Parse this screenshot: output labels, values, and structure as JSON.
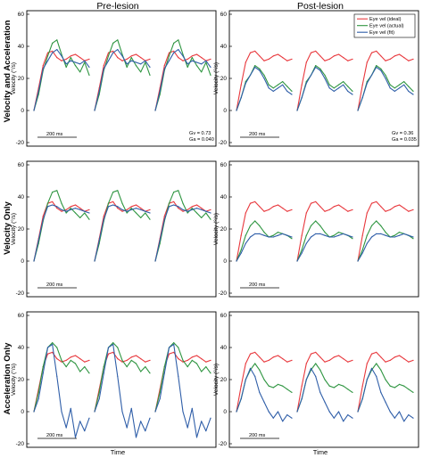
{
  "chart_data": {
    "type": "line",
    "columns": [
      "Pre-lesion",
      "Post-lesion"
    ],
    "rows": [
      "Velocity and Acceleration",
      "Velocity Only",
      "Acceleration Only"
    ],
    "ylabel": "Velocity (°/s)",
    "xlabel": "Time",
    "ylim": [
      -20,
      60
    ],
    "yticks": [
      -20,
      0,
      20,
      40,
      60
    ],
    "scale_bar": "200 ms",
    "legend": {
      "placement": "top-right",
      "entries": [
        "Eye vel (ideal)",
        "Eye vel (actual)",
        "Eye vel (fit)"
      ]
    },
    "series_colors": {
      "ideal": "#e8383d",
      "actual": "#2e9540",
      "fit": "#2f5ea8"
    },
    "gains": [
      {
        "row": "Velocity and Acceleration",
        "column": "Pre-lesion",
        "Gv": "Gv = 0.73",
        "Ga": "Ga = 0.040"
      },
      {
        "row": "Velocity and Acceleration",
        "column": "Post-lesion",
        "Gv": "Gv = 0.36",
        "Ga": "Ga = 0.035"
      }
    ],
    "panels": [
      {
        "row": 0,
        "col": 0,
        "x": [
          0,
          10,
          20,
          30,
          40,
          50,
          60,
          70,
          80,
          90,
          100,
          110,
          120
        ],
        "series": [
          {
            "key": "ideal",
            "values": [
              0,
              14,
              28,
              36,
              37,
              33,
              31,
              32,
              34,
              35,
              33,
              31,
              32
            ]
          },
          {
            "key": "actual",
            "values": [
              0,
              10,
              25,
              34,
              42,
              44,
              35,
              27,
              33,
              28,
              24,
              30,
              22
            ]
          },
          {
            "key": "fit",
            "values": [
              0,
              12,
              26,
              31,
              36,
              38,
              34,
              29,
              31,
              30,
              29,
              31,
              27
            ]
          }
        ]
      },
      {
        "row": 0,
        "col": 1,
        "x": [
          0,
          10,
          20,
          30,
          40,
          50,
          60,
          70,
          80,
          90,
          100,
          110,
          120
        ],
        "series": [
          {
            "key": "ideal",
            "values": [
              0,
              16,
              30,
              36,
              37,
              34,
              31,
              32,
              34,
              35,
              33,
              31,
              32
            ]
          },
          {
            "key": "actual",
            "values": [
              0,
              8,
              18,
              22,
              28,
              26,
              22,
              16,
              14,
              16,
              18,
              15,
              12
            ]
          },
          {
            "key": "fit",
            "values": [
              0,
              8,
              17,
              22,
              27,
              25,
              20,
              14,
              12,
              14,
              16,
              12,
              10
            ]
          }
        ]
      },
      {
        "row": 1,
        "col": 0,
        "x": [
          0,
          10,
          20,
          30,
          40,
          50,
          60,
          70,
          80,
          90,
          100,
          110,
          120
        ],
        "series": [
          {
            "key": "ideal",
            "values": [
              0,
              14,
              28,
              36,
              37,
              33,
              31,
              32,
              34,
              35,
              33,
              31,
              32
            ]
          },
          {
            "key": "actual",
            "values": [
              0,
              11,
              25,
              36,
              43,
              44,
              36,
              30,
              33,
              30,
              27,
              30,
              26
            ]
          },
          {
            "key": "fit",
            "values": [
              0,
              13,
              26,
              34,
              35,
              34,
              32,
              31,
              32,
              33,
              32,
              31,
              30
            ]
          }
        ]
      },
      {
        "row": 1,
        "col": 1,
        "x": [
          0,
          10,
          20,
          30,
          40,
          50,
          60,
          70,
          80,
          90,
          100,
          110,
          120
        ],
        "series": [
          {
            "key": "ideal",
            "values": [
              0,
              16,
              30,
              36,
              37,
              34,
              31,
              32,
              34,
              35,
              33,
              31,
              32
            ]
          },
          {
            "key": "actual",
            "values": [
              0,
              7,
              16,
              22,
              25,
              22,
              18,
              15,
              16,
              18,
              17,
              16,
              14
            ]
          },
          {
            "key": "fit",
            "values": [
              0,
              5,
              11,
              15,
              17,
              17,
              16,
              15,
              15,
              16,
              17,
              16,
              15
            ]
          }
        ]
      },
      {
        "row": 2,
        "col": 0,
        "x": [
          0,
          10,
          20,
          30,
          40,
          50,
          60,
          70,
          80,
          90,
          100,
          110,
          120
        ],
        "series": [
          {
            "key": "ideal",
            "values": [
              0,
              14,
              28,
              36,
              37,
              33,
              31,
              32,
              34,
              35,
              33,
              31,
              32
            ]
          },
          {
            "key": "actual",
            "values": [
              0,
              12,
              28,
              40,
              43,
              40,
              32,
              28,
              32,
              30,
              25,
              28,
              24
            ]
          },
          {
            "key": "fit",
            "values": [
              0,
              8,
              24,
              40,
              42,
              22,
              0,
              -10,
              2,
              -16,
              -6,
              -12,
              -4
            ]
          }
        ]
      },
      {
        "row": 2,
        "col": 1,
        "x": [
          0,
          10,
          20,
          30,
          40,
          50,
          60,
          70,
          80,
          90,
          100,
          110,
          120
        ],
        "series": [
          {
            "key": "ideal",
            "values": [
              0,
              16,
              30,
              36,
              37,
              34,
              31,
              32,
              34,
              35,
              33,
              31,
              32
            ]
          },
          {
            "key": "actual",
            "values": [
              0,
              8,
              20,
              26,
              30,
              26,
              20,
              16,
              15,
              17,
              16,
              14,
              12
            ]
          },
          {
            "key": "fit",
            "values": [
              0,
              8,
              20,
              27,
              22,
              12,
              6,
              0,
              -4,
              0,
              -6,
              -2,
              -4
            ]
          }
        ]
      }
    ]
  }
}
